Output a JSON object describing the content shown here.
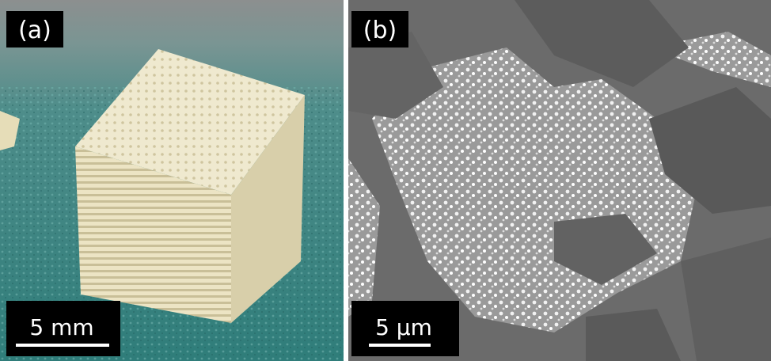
{
  "panels": [
    {
      "label": "(a)",
      "scale_bar": "5 mm"
    },
    {
      "label": "(b)",
      "scale_bar": "5 µm"
    }
  ]
}
